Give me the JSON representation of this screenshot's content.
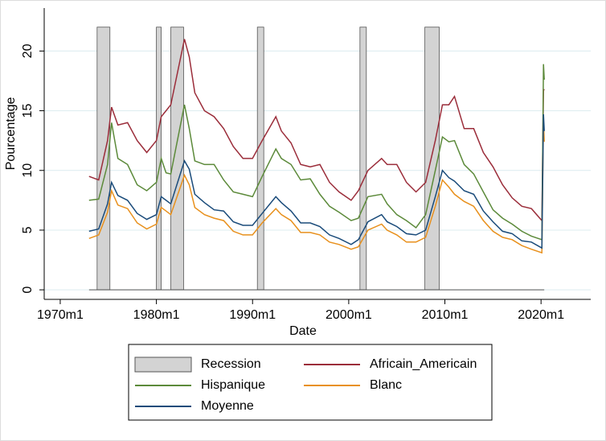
{
  "chart_data": {
    "type": "line",
    "x_label": "Date",
    "y_label": "Pourcentage",
    "xlim": [
      "1968m5",
      "2025m3"
    ],
    "ylim": [
      -0.8,
      23.6
    ],
    "xticks": [
      "1970m1",
      "1980m1",
      "1990m1",
      "2000m1",
      "2010m1",
      "2020m1"
    ],
    "yticks": [
      0,
      5,
      10,
      15,
      20
    ],
    "grid": true,
    "grid_color": "#dcecef",
    "recession": {
      "name": "Recession",
      "color": "#d3d3d3",
      "value": 22,
      "periods": [
        [
          "1973m11",
          "1975m3"
        ],
        [
          "1980m1",
          "1980m7"
        ],
        [
          "1981m7",
          "1982m11"
        ],
        [
          "1990m7",
          "1991m3"
        ],
        [
          "2001m3",
          "2001m11"
        ],
        [
          "2007m12",
          "2009m6"
        ]
      ]
    },
    "x": [
      "1973m1",
      "1974m1",
      "1974m12",
      "1975m5",
      "1976m1",
      "1977m1",
      "1978m1",
      "1979m1",
      "1980m1",
      "1980m7",
      "1981m1",
      "1981m7",
      "1982m12",
      "1983m6",
      "1984m1",
      "1985m1",
      "1986m1",
      "1987m1",
      "1988m1",
      "1989m1",
      "1990m1",
      "1991m1",
      "1992m6",
      "1993m1",
      "1994m1",
      "1995m1",
      "1996m1",
      "1997m1",
      "1998m1",
      "1999m1",
      "2000m4",
      "2001m1",
      "2002m1",
      "2003m6",
      "2004m1",
      "2005m1",
      "2006m1",
      "2007m1",
      "2008m1",
      "2009m1",
      "2009m10",
      "2010m6",
      "2011m1",
      "2012m1",
      "2013m1",
      "2014m1",
      "2015m1",
      "2016m1",
      "2017m1",
      "2018m1",
      "2019m1",
      "2020m2",
      "2020m4",
      "2020m5"
    ],
    "series": [
      {
        "name": "Africain_Americain",
        "color": "#9b2d3a",
        "values": [
          9.5,
          9.2,
          12.5,
          15.3,
          13.8,
          14.0,
          12.5,
          11.5,
          12.5,
          14.5,
          15.0,
          15.5,
          21.0,
          19.5,
          16.5,
          15.0,
          14.5,
          13.5,
          12.0,
          11.0,
          11.0,
          12.5,
          14.5,
          13.3,
          12.3,
          10.5,
          10.3,
          10.5,
          9.0,
          8.2,
          7.5,
          8.3,
          10.0,
          11.0,
          10.5,
          10.5,
          9.0,
          8.2,
          9.0,
          12.5,
          15.5,
          15.5,
          16.2,
          13.5,
          13.5,
          11.5,
          10.3,
          8.8,
          7.7,
          7.0,
          6.8,
          5.8,
          16.7,
          16.8
        ]
      },
      {
        "name": "Hispanique",
        "color": "#5c8a3a",
        "values": [
          7.5,
          7.6,
          10.5,
          14.0,
          11.0,
          10.5,
          8.8,
          8.3,
          9.0,
          11.0,
          9.8,
          9.7,
          15.5,
          13.5,
          10.8,
          10.5,
          10.5,
          9.2,
          8.2,
          8.0,
          7.8,
          9.5,
          11.8,
          11.0,
          10.5,
          9.2,
          9.3,
          8.0,
          7.0,
          6.5,
          5.8,
          6.0,
          7.8,
          8.0,
          7.2,
          6.3,
          5.8,
          5.2,
          6.3,
          10.0,
          12.8,
          12.4,
          12.5,
          10.5,
          9.7,
          8.2,
          6.7,
          6.0,
          5.5,
          4.9,
          4.5,
          4.2,
          18.9,
          17.6
        ]
      },
      {
        "name": "Blanc",
        "color": "#e8901c",
        "values": [
          4.3,
          4.6,
          6.5,
          8.3,
          7.1,
          6.8,
          5.6,
          5.1,
          5.5,
          6.9,
          6.6,
          6.3,
          9.6,
          8.8,
          6.9,
          6.3,
          6.0,
          5.8,
          4.9,
          4.6,
          4.6,
          5.6,
          6.8,
          6.3,
          5.8,
          4.8,
          4.8,
          4.6,
          4.0,
          3.8,
          3.4,
          3.6,
          5.0,
          5.5,
          5.0,
          4.6,
          4.0,
          4.0,
          4.4,
          7.0,
          9.2,
          8.6,
          8.0,
          7.4,
          7.0,
          5.8,
          4.9,
          4.4,
          4.2,
          3.7,
          3.4,
          3.1,
          14.2,
          12.4
        ]
      },
      {
        "name": "Moyenne",
        "color": "#1a4b7a",
        "values": [
          4.9,
          5.1,
          7.2,
          9.0,
          7.9,
          7.5,
          6.4,
          5.9,
          6.3,
          7.8,
          7.5,
          7.2,
          10.8,
          10.1,
          8.0,
          7.3,
          6.7,
          6.6,
          5.7,
          5.4,
          5.4,
          6.4,
          7.8,
          7.3,
          6.6,
          5.6,
          5.6,
          5.3,
          4.6,
          4.3,
          3.8,
          4.2,
          5.7,
          6.3,
          5.7,
          5.3,
          4.7,
          4.6,
          5.0,
          7.8,
          10.0,
          9.4,
          9.1,
          8.3,
          8.0,
          6.6,
          5.7,
          4.9,
          4.7,
          4.1,
          4.0,
          3.5,
          14.7,
          13.3
        ]
      }
    ]
  }
}
